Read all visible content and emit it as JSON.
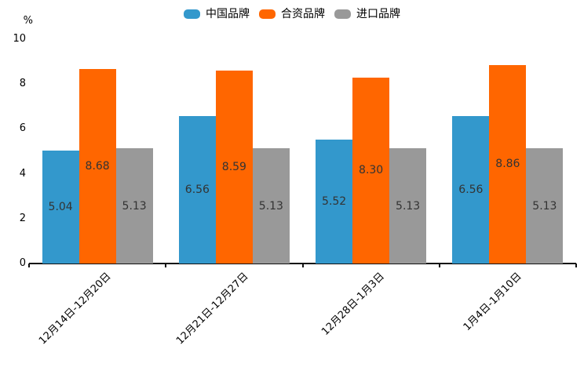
{
  "chart_data": {
    "type": "bar",
    "title": "",
    "unit": "%",
    "categories": [
      "12月14日-12月20日",
      "12月21日-12月27日",
      "12月28日-1月3日",
      "1月4日-1月10日"
    ],
    "series": [
      {
        "name": "中国品牌",
        "color": "#3398CC",
        "values": [
          5.04,
          6.56,
          5.52,
          6.56
        ],
        "labels": [
          "5.04",
          "6.56",
          "5.52",
          "6.56"
        ]
      },
      {
        "name": "合资品牌",
        "color": "#FF6600",
        "values": [
          8.68,
          8.59,
          8.3,
          8.86
        ],
        "labels": [
          "8.68",
          "8.59",
          "8.30",
          "8.86"
        ]
      },
      {
        "name": "进口品牌",
        "color": "#999999",
        "values": [
          5.13,
          5.13,
          5.13,
          5.13
        ],
        "labels": [
          "5.13",
          "5.13",
          "5.13",
          "5.13"
        ]
      }
    ],
    "y_ticks": [
      "0",
      "2",
      "4",
      "6",
      "8",
      "10"
    ],
    "ylim": [
      0,
      10
    ],
    "grid": false,
    "legend_position": "top",
    "value_labels": true,
    "axis_color": "#111111",
    "value_label_color": "#333333"
  }
}
